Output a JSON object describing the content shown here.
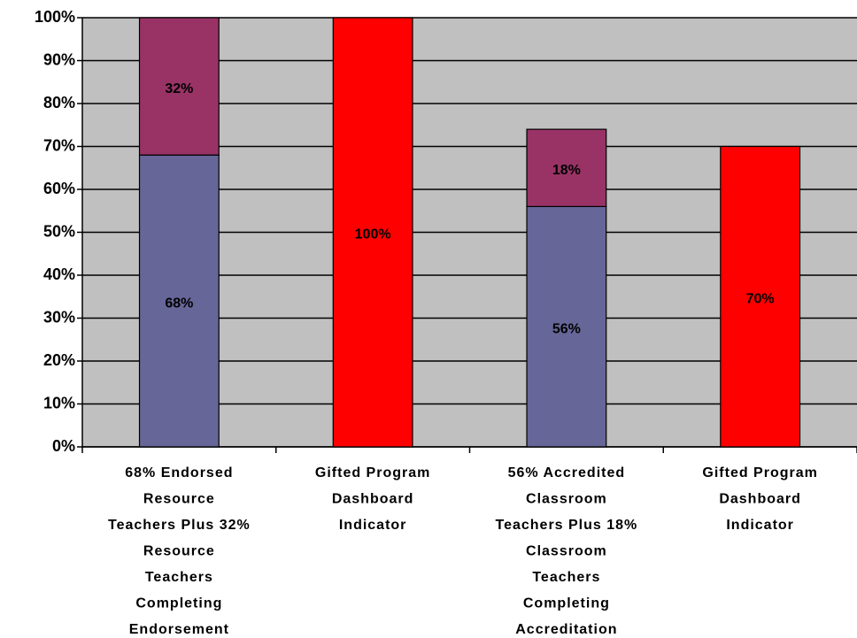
{
  "chart_data": {
    "type": "stacked_bar",
    "categories": [
      [
        "68% Endorsed",
        "Resource",
        "Teachers Plus 32%",
        "Resource",
        "Teachers",
        "Completing",
        "Endorsement"
      ],
      [
        "Gifted Program",
        "Dashboard",
        "Indicator"
      ],
      [
        "56% Accredited",
        "Classroom",
        "Teachers Plus 18%",
        "Classroom",
        "Teachers",
        "Completing",
        "Accreditation"
      ],
      [
        "Gifted Program",
        "Dashboard",
        "Indicator"
      ]
    ],
    "series": [
      {
        "color": "#666699",
        "values": [
          68,
          null,
          56,
          null
        ],
        "value_labels": [
          "68%",
          null,
          "56%",
          null
        ]
      },
      {
        "color": "#993366",
        "values": [
          32,
          null,
          18,
          null
        ],
        "value_labels": [
          "32%",
          null,
          "18%",
          null
        ]
      },
      {
        "color": "#ff0000",
        "values": [
          null,
          100,
          null,
          70
        ],
        "value_labels": [
          null,
          "100%",
          null,
          "70%"
        ]
      }
    ],
    "ylim": [
      0,
      100
    ],
    "yticks": [
      {
        "value": 0,
        "label": "0%"
      },
      {
        "value": 10,
        "label": "10%"
      },
      {
        "value": 20,
        "label": "20%"
      },
      {
        "value": 30,
        "label": "30%"
      },
      {
        "value": 40,
        "label": "40%"
      },
      {
        "value": 50,
        "label": "50%"
      },
      {
        "value": 60,
        "label": "60%"
      },
      {
        "value": 70,
        "label": "70%"
      },
      {
        "value": 80,
        "label": "80%"
      },
      {
        "value": 90,
        "label": "90%"
      },
      {
        "value": 100,
        "label": "100%"
      }
    ],
    "grid": true,
    "plot_background": "#c0c0c0"
  }
}
